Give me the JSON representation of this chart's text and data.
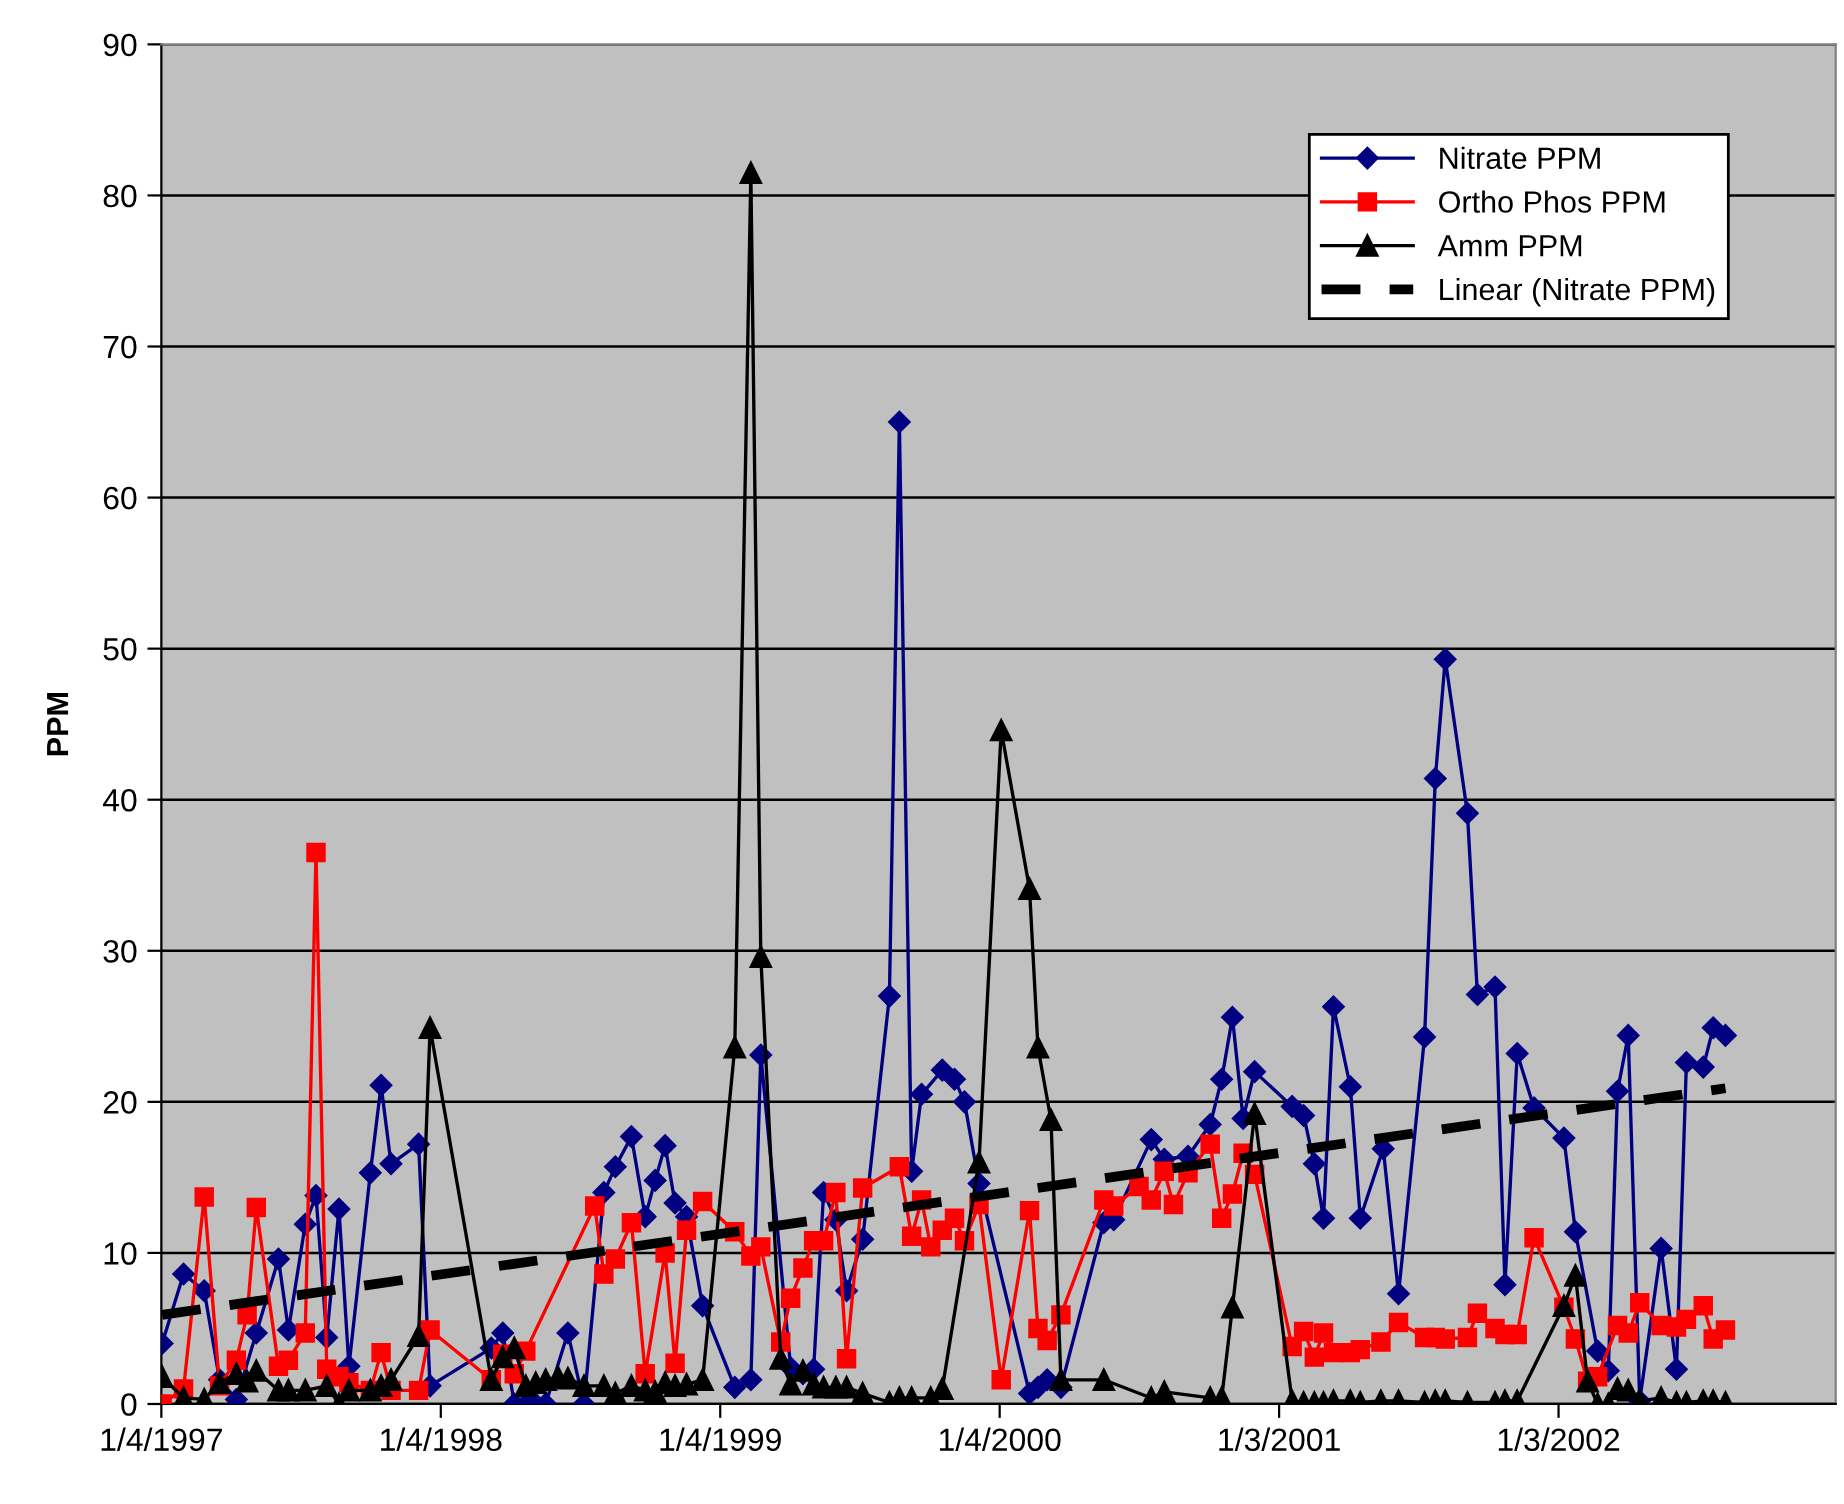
{
  "chart_data": {
    "type": "line",
    "ylabel": "PPM",
    "xlim": [
      "1997-01-04",
      "2002-12-31"
    ],
    "ylim": [
      0,
      90
    ],
    "yticks": [
      0,
      10,
      20,
      30,
      40,
      50,
      60,
      70,
      80,
      90
    ],
    "xticks": [
      {
        "value": "1997-01-04",
        "label": "1/4/1997"
      },
      {
        "value": "1998-01-04",
        "label": "1/4/1998"
      },
      {
        "value": "1999-01-04",
        "label": "1/4/1999"
      },
      {
        "value": "2000-01-04",
        "label": "1/4/2000"
      },
      {
        "value": "2001-01-03",
        "label": "1/3/2001"
      },
      {
        "value": "2002-01-03",
        "label": "1/3/2002"
      }
    ],
    "grid": "y",
    "legend": "top right",
    "series": [
      {
        "name": "Nitrate PPM",
        "color": "#000080",
        "marker": "diamond",
        "line_style": "solid",
        "x": [
          "1997-01-05",
          "1997-02-02",
          "1997-03-01",
          "1997-03-21",
          "1997-04-12",
          "1997-05-08",
          "1997-06-06",
          "1997-06-19",
          "1997-07-11",
          "1997-07-25",
          "1997-08-08",
          "1997-08-24",
          "1997-09-06",
          "1997-10-04",
          "1997-10-18",
          "1997-10-31",
          "1997-12-06",
          "1997-12-21",
          "1998-03-11",
          "1998-03-26",
          "1998-04-10",
          "1998-04-25",
          "1998-05-08",
          "1998-05-21",
          "1998-06-19",
          "1998-07-10",
          "1998-08-05",
          "1998-08-20",
          "1998-09-10",
          "1998-09-28",
          "1998-10-11",
          "1998-10-24",
          "1998-11-06",
          "1998-11-21",
          "1998-12-12",
          "1999-01-23",
          "1999-02-13",
          "1999-02-26",
          "1999-04-06",
          "1999-04-22",
          "1999-05-06",
          "1999-05-19",
          "1999-06-04",
          "1999-06-18",
          "1999-07-09",
          "1999-08-13",
          "1999-08-26",
          "1999-09-11",
          "1999-09-24",
          "1999-10-21",
          "1999-11-06",
          "1999-11-19",
          "1999-12-08",
          "2000-02-12",
          "2000-02-23",
          "2000-03-06",
          "2000-03-24",
          "2000-05-19",
          "2000-06-01",
          "2000-07-20",
          "2000-08-06",
          "2000-09-06",
          "2000-10-05",
          "2000-10-20",
          "2000-11-03",
          "2000-11-17",
          "2000-12-02",
          "2001-01-20",
          "2001-02-04",
          "2001-02-18",
          "2001-03-02",
          "2001-03-15",
          "2001-04-06",
          "2001-04-19",
          "2001-05-19",
          "2001-06-08",
          "2001-07-12",
          "2001-07-26",
          "2001-08-08",
          "2001-09-06",
          "2001-09-19",
          "2001-10-12",
          "2001-10-25",
          "2001-11-10",
          "2001-12-02",
          "2002-01-10",
          "2002-01-25",
          "2002-02-23",
          "2002-03-09",
          "2002-03-21",
          "2002-04-04",
          "2002-04-19",
          "2002-05-17",
          "2002-06-06",
          "2002-06-19",
          "2002-07-11",
          "2002-07-24",
          "2002-08-09"
        ],
        "values": [
          4.0,
          8.6,
          7.5,
          1.6,
          0.3,
          4.7,
          9.6,
          4.9,
          11.9,
          13.8,
          4.4,
          12.9,
          2.5,
          15.3,
          21.1,
          15.9,
          17.2,
          1.2,
          3.7,
          4.7,
          0,
          0,
          0,
          0,
          4.7,
          0,
          14.0,
          15.7,
          17.7,
          12.4,
          14.8,
          17.1,
          13.3,
          12.4,
          6.5,
          1.1,
          1.6,
          23.1,
          2.4,
          2.0,
          2.3,
          14.0,
          12.2,
          7.5,
          10.9,
          27.0,
          65.0,
          15.4,
          20.5,
          22.1,
          21.5,
          20.0,
          14.6,
          0.7,
          1.1,
          1.6,
          1.1,
          12.0,
          12.2,
          17.5,
          16.2,
          16.4,
          18.5,
          21.5,
          25.6,
          18.9,
          22.0,
          19.7,
          19.1,
          15.9,
          12.3,
          26.3,
          21.0,
          12.3,
          16.9,
          7.3,
          24.3,
          41.4,
          49.3,
          39.1,
          27.1,
          27.6,
          7.9,
          23.2,
          19.6,
          17.6,
          11.4,
          3.5,
          2.2,
          20.7,
          24.4,
          0.2,
          10.3,
          2.3,
          22.6,
          22.3,
          24.9,
          24.4
        ]
      },
      {
        "name": "Ortho Phos PPM",
        "color": "#ff0000",
        "marker": "square",
        "line_style": "solid",
        "x": [
          "1997-01-05",
          "1997-02-02",
          "1997-03-01",
          "1997-03-21",
          "1997-04-12",
          "1997-04-26",
          "1997-05-08",
          "1997-06-06",
          "1997-06-19",
          "1997-07-11",
          "1997-07-25",
          "1997-08-08",
          "1997-08-24",
          "1997-09-06",
          "1997-10-04",
          "1997-10-18",
          "1997-10-31",
          "1997-12-06",
          "1997-12-21",
          "1998-03-11",
          "1998-03-26",
          "1998-04-10",
          "1998-04-25",
          "1998-07-24",
          "1998-08-05",
          "1998-08-20",
          "1998-09-10",
          "1998-09-28",
          "1998-10-24",
          "1998-11-06",
          "1998-11-21",
          "1998-12-12",
          "1999-01-23",
          "1999-02-13",
          "1999-02-26",
          "1999-03-24",
          "1999-04-06",
          "1999-04-22",
          "1999-05-06",
          "1999-05-19",
          "1999-06-04",
          "1999-06-18",
          "1999-07-09",
          "1999-08-26",
          "1999-09-11",
          "1999-09-24",
          "1999-10-06",
          "1999-10-21",
          "1999-11-06",
          "1999-11-19",
          "1999-12-08",
          "2000-01-06",
          "2000-02-12",
          "2000-02-23",
          "2000-03-06",
          "2000-03-24",
          "2000-05-19",
          "2000-06-01",
          "2000-07-04",
          "2000-07-20",
          "2000-08-06",
          "2000-08-18",
          "2000-09-06",
          "2000-10-05",
          "2000-10-20",
          "2000-11-03",
          "2000-11-17",
          "2000-12-02",
          "2001-01-20",
          "2001-02-04",
          "2001-02-18",
          "2001-03-02",
          "2001-03-15",
          "2001-04-06",
          "2001-04-19",
          "2001-05-16",
          "2001-06-08",
          "2001-07-12",
          "2001-07-26",
          "2001-08-08",
          "2001-09-06",
          "2001-09-19",
          "2001-10-12",
          "2001-10-25",
          "2001-11-10",
          "2001-12-02",
          "2002-01-10",
          "2002-01-25",
          "2002-02-10",
          "2002-02-23",
          "2002-03-21",
          "2002-04-04",
          "2002-04-19",
          "2002-05-17",
          "2002-06-06",
          "2002-06-19",
          "2002-07-11",
          "2002-07-24",
          "2002-08-09"
        ],
        "values": [
          0,
          1.0,
          13.7,
          1.2,
          2.9,
          5.9,
          13.0,
          2.5,
          2.9,
          4.7,
          36.5,
          2.3,
          1.8,
          1.4,
          0.9,
          3.4,
          0.9,
          0.9,
          4.9,
          1.6,
          3.3,
          2.0,
          3.5,
          13.1,
          8.6,
          9.6,
          12.0,
          2.0,
          10.0,
          2.7,
          11.5,
          13.4,
          11.4,
          9.8,
          10.4,
          4.1,
          7.0,
          9.0,
          10.8,
          10.8,
          14.0,
          3.0,
          14.3,
          15.7,
          11.1,
          13.5,
          10.4,
          11.5,
          12.3,
          10.8,
          13.2,
          1.6,
          12.8,
          5.0,
          4.2,
          5.9,
          13.5,
          13.1,
          14.4,
          13.5,
          15.4,
          13.2,
          15.3,
          17.2,
          12.3,
          13.9,
          16.6,
          15.2,
          3.8,
          4.8,
          3.1,
          4.7,
          3.4,
          3.4,
          3.6,
          4.1,
          5.4,
          4.4,
          4.4,
          4.3,
          4.4,
          6.0,
          5.0,
          4.6,
          4.6,
          11.0,
          6.4,
          4.3,
          1.5,
          1.8,
          5.2,
          4.7,
          6.7,
          5.2,
          5.1,
          5.6,
          6.5,
          4.3,
          4.9
        ]
      },
      {
        "name": "Amm PPM",
        "color": "#000000",
        "marker": "triangle",
        "line_style": "solid",
        "x": [
          "1997-01-05",
          "1997-02-02",
          "1997-03-01",
          "1997-03-21",
          "1997-04-12",
          "1997-04-26",
          "1997-05-08",
          "1997-06-06",
          "1997-06-19",
          "1997-07-11",
          "1997-08-08",
          "1997-08-24",
          "1997-09-06",
          "1997-10-04",
          "1997-10-18",
          "1997-10-31",
          "1997-12-06",
          "1997-12-21",
          "1998-03-11",
          "1998-03-26",
          "1998-04-10",
          "1998-04-25",
          "1998-05-08",
          "1998-05-21",
          "1998-06-06",
          "1998-06-19",
          "1998-07-10",
          "1998-08-05",
          "1998-08-20",
          "1998-09-10",
          "1998-09-28",
          "1998-10-11",
          "1998-10-24",
          "1998-11-06",
          "1998-11-21",
          "1998-12-12",
          "1999-01-23",
          "1999-02-13",
          "1999-02-26",
          "1999-03-24",
          "1999-04-06",
          "1999-04-22",
          "1999-05-06",
          "1999-05-19",
          "1999-06-04",
          "1999-06-18",
          "1999-07-09",
          "1999-08-13",
          "1999-08-26",
          "1999-09-11",
          "1999-10-06",
          "1999-10-21",
          "1999-12-08",
          "2000-01-06",
          "2000-02-12",
          "2000-02-23",
          "2000-03-11",
          "2000-03-24",
          "2000-05-19",
          "2000-07-20",
          "2000-08-06",
          "2000-10-05",
          "2000-10-20",
          "2000-11-03",
          "2000-12-02",
          "2001-01-20",
          "2001-02-04",
          "2001-02-18",
          "2001-03-02",
          "2001-03-15",
          "2001-04-06",
          "2001-04-19",
          "2001-05-16",
          "2001-06-08",
          "2001-07-12",
          "2001-07-26",
          "2001-08-08",
          "2001-09-06",
          "2001-10-12",
          "2001-10-25",
          "2001-11-10",
          "2002-01-10",
          "2002-01-25",
          "2002-02-10",
          "2002-02-23",
          "2002-03-09",
          "2002-03-21",
          "2002-04-04",
          "2002-04-19",
          "2002-05-17",
          "2002-06-06",
          "2002-06-19",
          "2002-07-11",
          "2002-07-24",
          "2002-08-09"
        ],
        "values": [
          1.8,
          0.4,
          0.3,
          1.4,
          2.0,
          1.5,
          2.2,
          0.9,
          0.9,
          0.9,
          1.2,
          0,
          0.9,
          0.9,
          1.2,
          1.6,
          4.5,
          24.9,
          1.6,
          3.1,
          3.7,
          1.2,
          1.4,
          1.6,
          1.8,
          1.7,
          1.2,
          1.2,
          0.7,
          1.2,
          0.9,
          0.8,
          1.4,
          1.2,
          1.3,
          1.6,
          23.6,
          81.5,
          29.6,
          3.0,
          1.3,
          2.2,
          1.3,
          1.1,
          1.1,
          1.1,
          0.7,
          0.1,
          0.4,
          0.4,
          0.4,
          1.0,
          16.0,
          44.6,
          34.1,
          23.6,
          18.8,
          1.6,
          1.6,
          0.4,
          0.8,
          0.4,
          0.4,
          6.4,
          19.2,
          0.2,
          0.1,
          0.1,
          0.1,
          0.2,
          0.2,
          0.1,
          0.2,
          0.2,
          0.1,
          0.2,
          0.2,
          0.1,
          0.1,
          0.2,
          0.2,
          6.5,
          8.5,
          1.5,
          0,
          0,
          1.0,
          0.9,
          0.2,
          0.4,
          0.1,
          0.1,
          0.2,
          0.2,
          0.1
        ]
      },
      {
        "name": "Linear (Nitrate PPM)",
        "color": "#000000",
        "marker": "none",
        "line_style": "dashed",
        "x": [
          "1997-01-05",
          "2002-08-09"
        ],
        "values": [
          5.9,
          20.9
        ]
      }
    ]
  }
}
